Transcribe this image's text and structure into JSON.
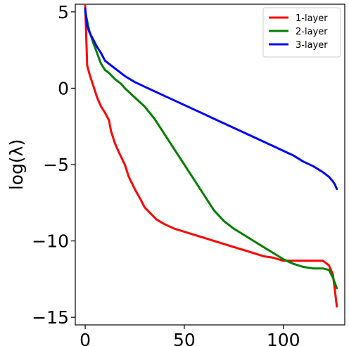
{
  "chart_data": {
    "type": "line",
    "title": "",
    "xlabel": "",
    "ylabel": "log(λ)",
    "xlim": [
      -5,
      131
    ],
    "ylim": [
      -15.5,
      5.5
    ],
    "xticks": [
      0,
      50,
      100
    ],
    "yticks": [
      5,
      0,
      -5,
      -10,
      -15
    ],
    "xtick_labels": [
      "0",
      "50",
      "100"
    ],
    "ytick_labels": [
      "5",
      "0",
      "−5",
      "−10",
      "−15"
    ],
    "grid": false,
    "legend_position": "top-right",
    "series": [
      {
        "name": "1-layer",
        "color": "#ff0000",
        "x": [
          0,
          1,
          2,
          4,
          6,
          8,
          10,
          12,
          13,
          15,
          17,
          20,
          22,
          25,
          28,
          30,
          33,
          36,
          40,
          45,
          50,
          55,
          60,
          65,
          70,
          75,
          80,
          85,
          90,
          95,
          100,
          105,
          110,
          115,
          120,
          123,
          125,
          126,
          127
        ],
        "y": [
          5.4,
          1.5,
          1.0,
          0.2,
          -0.6,
          -1.2,
          -1.6,
          -2.1,
          -2.8,
          -3.6,
          -4.2,
          -5.0,
          -5.8,
          -6.6,
          -7.3,
          -7.8,
          -8.2,
          -8.6,
          -8.9,
          -9.2,
          -9.4,
          -9.6,
          -9.8,
          -10.0,
          -10.2,
          -10.4,
          -10.6,
          -10.8,
          -11.0,
          -11.1,
          -11.3,
          -11.3,
          -11.3,
          -11.3,
          -11.3,
          -11.6,
          -12.2,
          -13.2,
          -14.3
        ]
      },
      {
        "name": "2-layer",
        "color": "#008000",
        "x": [
          0,
          2,
          4,
          6,
          8,
          10,
          12,
          15,
          18,
          20,
          25,
          30,
          35,
          40,
          45,
          50,
          55,
          60,
          65,
          70,
          75,
          80,
          85,
          90,
          95,
          100,
          105,
          110,
          115,
          120,
          123,
          125,
          127
        ],
        "y": [
          5.0,
          3.8,
          3.0,
          2.3,
          1.6,
          1.2,
          1.0,
          0.6,
          0.3,
          0.0,
          -0.6,
          -1.2,
          -2.0,
          -3.0,
          -4.0,
          -5.0,
          -6.0,
          -7.0,
          -8.0,
          -8.7,
          -9.2,
          -9.6,
          -10.0,
          -10.4,
          -10.8,
          -11.2,
          -11.5,
          -11.7,
          -11.8,
          -11.8,
          -11.9,
          -12.4,
          -13.1
        ]
      },
      {
        "name": "3-layer",
        "color": "#0000ff",
        "x": [
          0,
          1,
          2,
          4,
          6,
          8,
          10,
          15,
          20,
          25,
          30,
          35,
          40,
          45,
          50,
          55,
          60,
          65,
          70,
          75,
          80,
          85,
          90,
          95,
          100,
          105,
          110,
          115,
          120,
          123,
          125,
          126,
          127
        ],
        "y": [
          5.2,
          4.1,
          3.7,
          3.2,
          2.7,
          2.3,
          1.8,
          1.3,
          0.8,
          0.4,
          0.1,
          -0.2,
          -0.5,
          -0.8,
          -1.1,
          -1.4,
          -1.7,
          -2.0,
          -2.3,
          -2.6,
          -2.9,
          -3.2,
          -3.5,
          -3.8,
          -4.1,
          -4.4,
          -4.8,
          -5.1,
          -5.5,
          -5.8,
          -6.1,
          -6.3,
          -6.6
        ]
      }
    ]
  }
}
